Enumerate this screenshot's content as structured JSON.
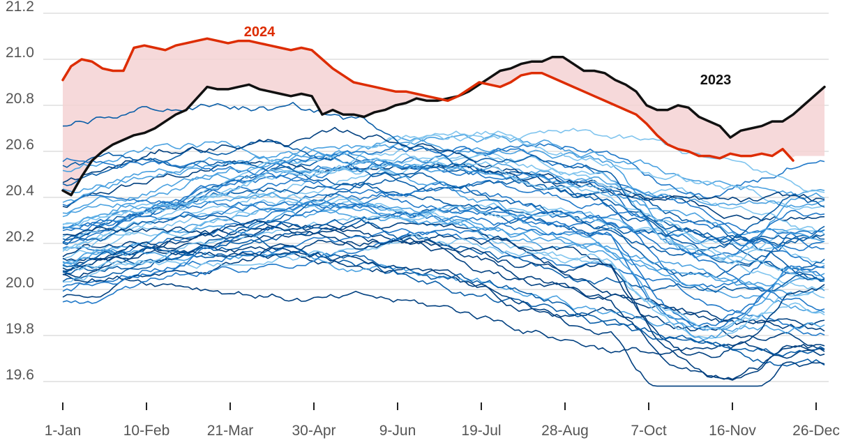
{
  "chart_data": {
    "type": "line",
    "title": "",
    "xlabel": "",
    "ylabel": "",
    "ylim": [
      19.55,
      21.22
    ],
    "xlim": [
      -3,
      370
    ],
    "grid": "horizontal",
    "y_ticks": [
      19.6,
      19.8,
      20.0,
      20.2,
      20.4,
      20.6,
      20.8,
      21.0,
      21.2
    ],
    "y_tick_labels": [
      "19.6",
      "19.8",
      "20.0",
      "20.2",
      "20.4",
      "20.6",
      "20.8",
      "21.0",
      "21.2"
    ],
    "x_tick_days": [
      1,
      41,
      81,
      121,
      161,
      201,
      241,
      281,
      321,
      361
    ],
    "x_tick_labels": [
      "1-Jan",
      "10-Feb",
      "21-Mar",
      "30-Apr",
      "9-Jun",
      "19-Jul",
      "28-Aug",
      "7-Oct",
      "16-Nov",
      "26-Dec"
    ],
    "colors": {
      "y2024": "#dd2c00",
      "y2023": "#111111",
      "band": "#f5d2d3",
      "grid": "#cccccc",
      "history": [
        "#003f7f",
        "#0a5ea8",
        "#1f78c8",
        "#4aa1e0",
        "#7fc4ee"
      ]
    },
    "series": [
      {
        "name": "2024",
        "x": [
          1,
          5,
          10,
          15,
          20,
          25,
          30,
          35,
          40,
          45,
          50,
          55,
          60,
          65,
          70,
          75,
          80,
          85,
          90,
          95,
          100,
          105,
          110,
          115,
          120,
          125,
          130,
          135,
          140,
          145,
          150,
          155,
          160,
          165,
          170,
          175,
          180,
          185,
          190,
          195,
          200,
          205,
          210,
          215,
          220,
          225,
          230,
          235,
          240,
          245,
          250,
          255,
          260,
          265,
          270,
          275,
          280,
          285,
          290,
          295,
          300,
          305,
          310,
          315,
          320,
          325,
          330,
          335,
          340,
          345,
          350
        ],
        "y": [
          20.91,
          20.97,
          21.0,
          20.99,
          20.96,
          20.95,
          20.95,
          21.05,
          21.06,
          21.05,
          21.04,
          21.06,
          21.07,
          21.08,
          21.09,
          21.08,
          21.07,
          21.08,
          21.08,
          21.07,
          21.06,
          21.05,
          21.04,
          21.05,
          21.04,
          21.0,
          20.96,
          20.93,
          20.9,
          20.89,
          20.88,
          20.87,
          20.86,
          20.86,
          20.85,
          20.84,
          20.83,
          20.82,
          20.84,
          20.87,
          20.9,
          20.89,
          20.88,
          20.9,
          20.93,
          20.94,
          20.94,
          20.92,
          20.9,
          20.88,
          20.86,
          20.84,
          20.82,
          20.8,
          20.78,
          20.76,
          20.72,
          20.67,
          20.63,
          20.61,
          20.6,
          20.58,
          20.58,
          20.57,
          20.59,
          20.58,
          20.58,
          20.59,
          20.58,
          20.61,
          20.56
        ]
      },
      {
        "name": "2023",
        "x": [
          1,
          5,
          10,
          15,
          20,
          25,
          30,
          35,
          40,
          45,
          50,
          55,
          60,
          65,
          70,
          75,
          80,
          85,
          90,
          95,
          100,
          105,
          110,
          115,
          120,
          125,
          130,
          135,
          140,
          145,
          150,
          155,
          160,
          165,
          170,
          175,
          180,
          185,
          190,
          195,
          200,
          205,
          210,
          215,
          220,
          225,
          230,
          235,
          240,
          245,
          250,
          255,
          260,
          265,
          270,
          275,
          280,
          285,
          290,
          295,
          300,
          305,
          310,
          315,
          320,
          325,
          330,
          335,
          340,
          345,
          350,
          355,
          360,
          365
        ],
        "y": [
          20.43,
          20.41,
          20.49,
          20.56,
          20.6,
          20.63,
          20.65,
          20.67,
          20.68,
          20.7,
          20.73,
          20.76,
          20.78,
          20.83,
          20.88,
          20.87,
          20.87,
          20.88,
          20.89,
          20.87,
          20.86,
          20.85,
          20.84,
          20.85,
          20.84,
          20.76,
          20.78,
          20.76,
          20.76,
          20.75,
          20.77,
          20.78,
          20.8,
          20.81,
          20.83,
          20.82,
          20.82,
          20.83,
          20.84,
          20.86,
          20.89,
          20.92,
          20.95,
          20.96,
          20.98,
          20.99,
          20.99,
          21.01,
          21.01,
          20.98,
          20.95,
          20.95,
          20.94,
          20.91,
          20.89,
          20.86,
          20.8,
          20.78,
          20.78,
          20.8,
          20.79,
          20.75,
          20.73,
          20.71,
          20.66,
          20.69,
          20.7,
          20.71,
          20.73,
          20.73,
          20.76,
          20.8,
          20.84,
          20.88
        ]
      }
    ]
  }
}
